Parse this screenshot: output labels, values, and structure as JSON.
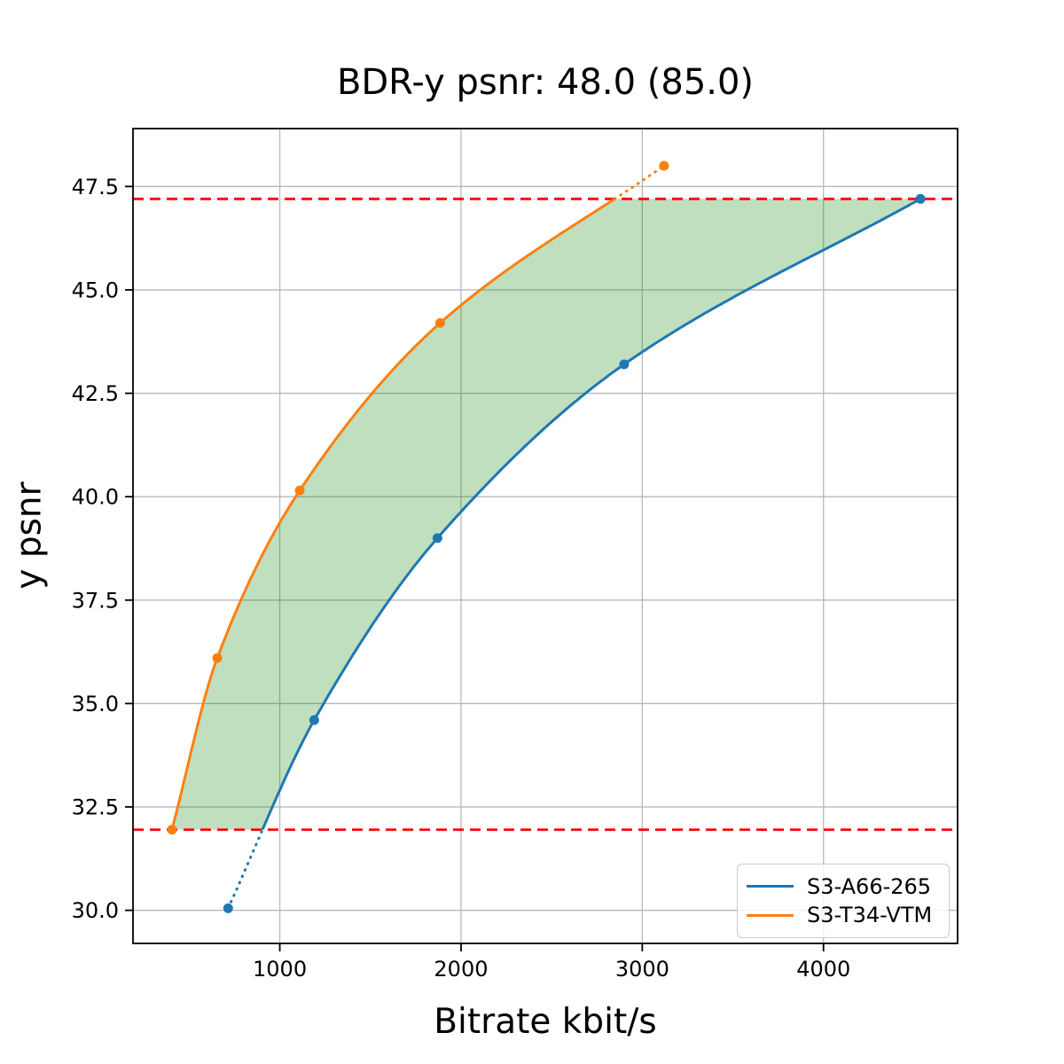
{
  "figure": {
    "title": "BDR-y psnr: 48.0 (85.0)",
    "xlabel": "Bitrate kbit/s",
    "ylabel": "y psnr"
  },
  "legend": {
    "position": "lower right",
    "items": [
      {
        "label": "S3-A66-265",
        "color": "#1f77b4"
      },
      {
        "label": "S3-T34-VTM",
        "color": "#ff7f0e"
      }
    ]
  },
  "chart_data": {
    "type": "line",
    "title": "BDR-y psnr: 48.0 (85.0)",
    "xlabel": "Bitrate kbit/s",
    "ylabel": "y psnr",
    "xlim": [
      190,
      4740
    ],
    "ylim": [
      29.2,
      48.9
    ],
    "xticks": [
      1000,
      2000,
      3000,
      4000
    ],
    "yticks": [
      30.0,
      32.5,
      35.0,
      37.5,
      40.0,
      42.5,
      45.0,
      47.5
    ],
    "grid": true,
    "grid_color": "#b8b8b8",
    "series": [
      {
        "name": "S3-A66-265",
        "color": "#1f77b4",
        "x": [
          715,
          1190,
          1870,
          2900,
          4535
        ],
        "y": [
          30.05,
          34.6,
          39.0,
          43.2,
          47.2
        ]
      },
      {
        "name": "S3-T34-VTM",
        "color": "#ff7f0e",
        "x": [
          405,
          655,
          1110,
          1885,
          3120
        ],
        "y": [
          31.95,
          36.1,
          40.15,
          44.2,
          48.0
        ]
      }
    ],
    "integration_bounds": {
      "lower_psnr": 31.95,
      "upper_psnr": 47.2,
      "line_color": "#ff0000",
      "line_style": "dashed"
    },
    "fill_between": {
      "color": "0,128,0",
      "alpha": 0.25
    },
    "note_out_of_range_segments": "dotted",
    "legend_position": "lower right"
  }
}
